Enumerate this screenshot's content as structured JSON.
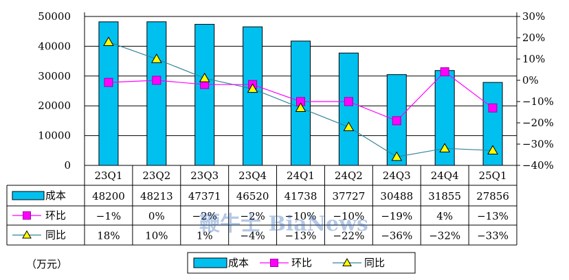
{
  "chart_data": {
    "type": "bar",
    "categories": [
      "23Q1",
      "23Q2",
      "23Q3",
      "23Q4",
      "24Q1",
      "24Q2",
      "24Q3",
      "24Q4",
      "25Q1"
    ],
    "series": [
      {
        "name": "成本",
        "type": "bar",
        "axis": "left",
        "color": "#00c0f0",
        "values": [
          48200,
          48213,
          47371,
          46520,
          41738,
          37727,
          30488,
          31855,
          27856
        ]
      },
      {
        "name": "环比",
        "type": "line",
        "axis": "right",
        "color": "#ff00ff",
        "values": [
          -1,
          0,
          -2,
          -2,
          -10,
          -10,
          -19,
          4,
          -13
        ],
        "labels": [
          "−1%",
          "0%",
          "−2%",
          "−2%",
          "−10%",
          "−10%",
          "−19%",
          "4%",
          "−13%"
        ]
      },
      {
        "name": "同比",
        "type": "line",
        "axis": "right",
        "color": "#ffff00",
        "line_color": "#31849b",
        "values": [
          18,
          10,
          1,
          -4,
          -13,
          -22,
          -36,
          -32,
          -33
        ],
        "labels": [
          "18%",
          "10%",
          "1%",
          "−4%",
          "−13%",
          "−22%",
          "−36%",
          "−32%",
          "−33%"
        ]
      }
    ],
    "yleft_ticks": [
      "0",
      "10000",
      "20000",
      "30000",
      "40000",
      "50000"
    ],
    "yleft_lim": [
      0,
      50000
    ],
    "yright_ticks": [
      "−40%",
      "−30%",
      "−20%",
      "−10%",
      "0%",
      "10%",
      "20%",
      "30%"
    ],
    "yright_lim": [
      -40,
      30
    ],
    "unit_label": "（万元）",
    "legend_position": "bottom",
    "grid": true,
    "watermark": "鞭牛士 BiaNews"
  }
}
